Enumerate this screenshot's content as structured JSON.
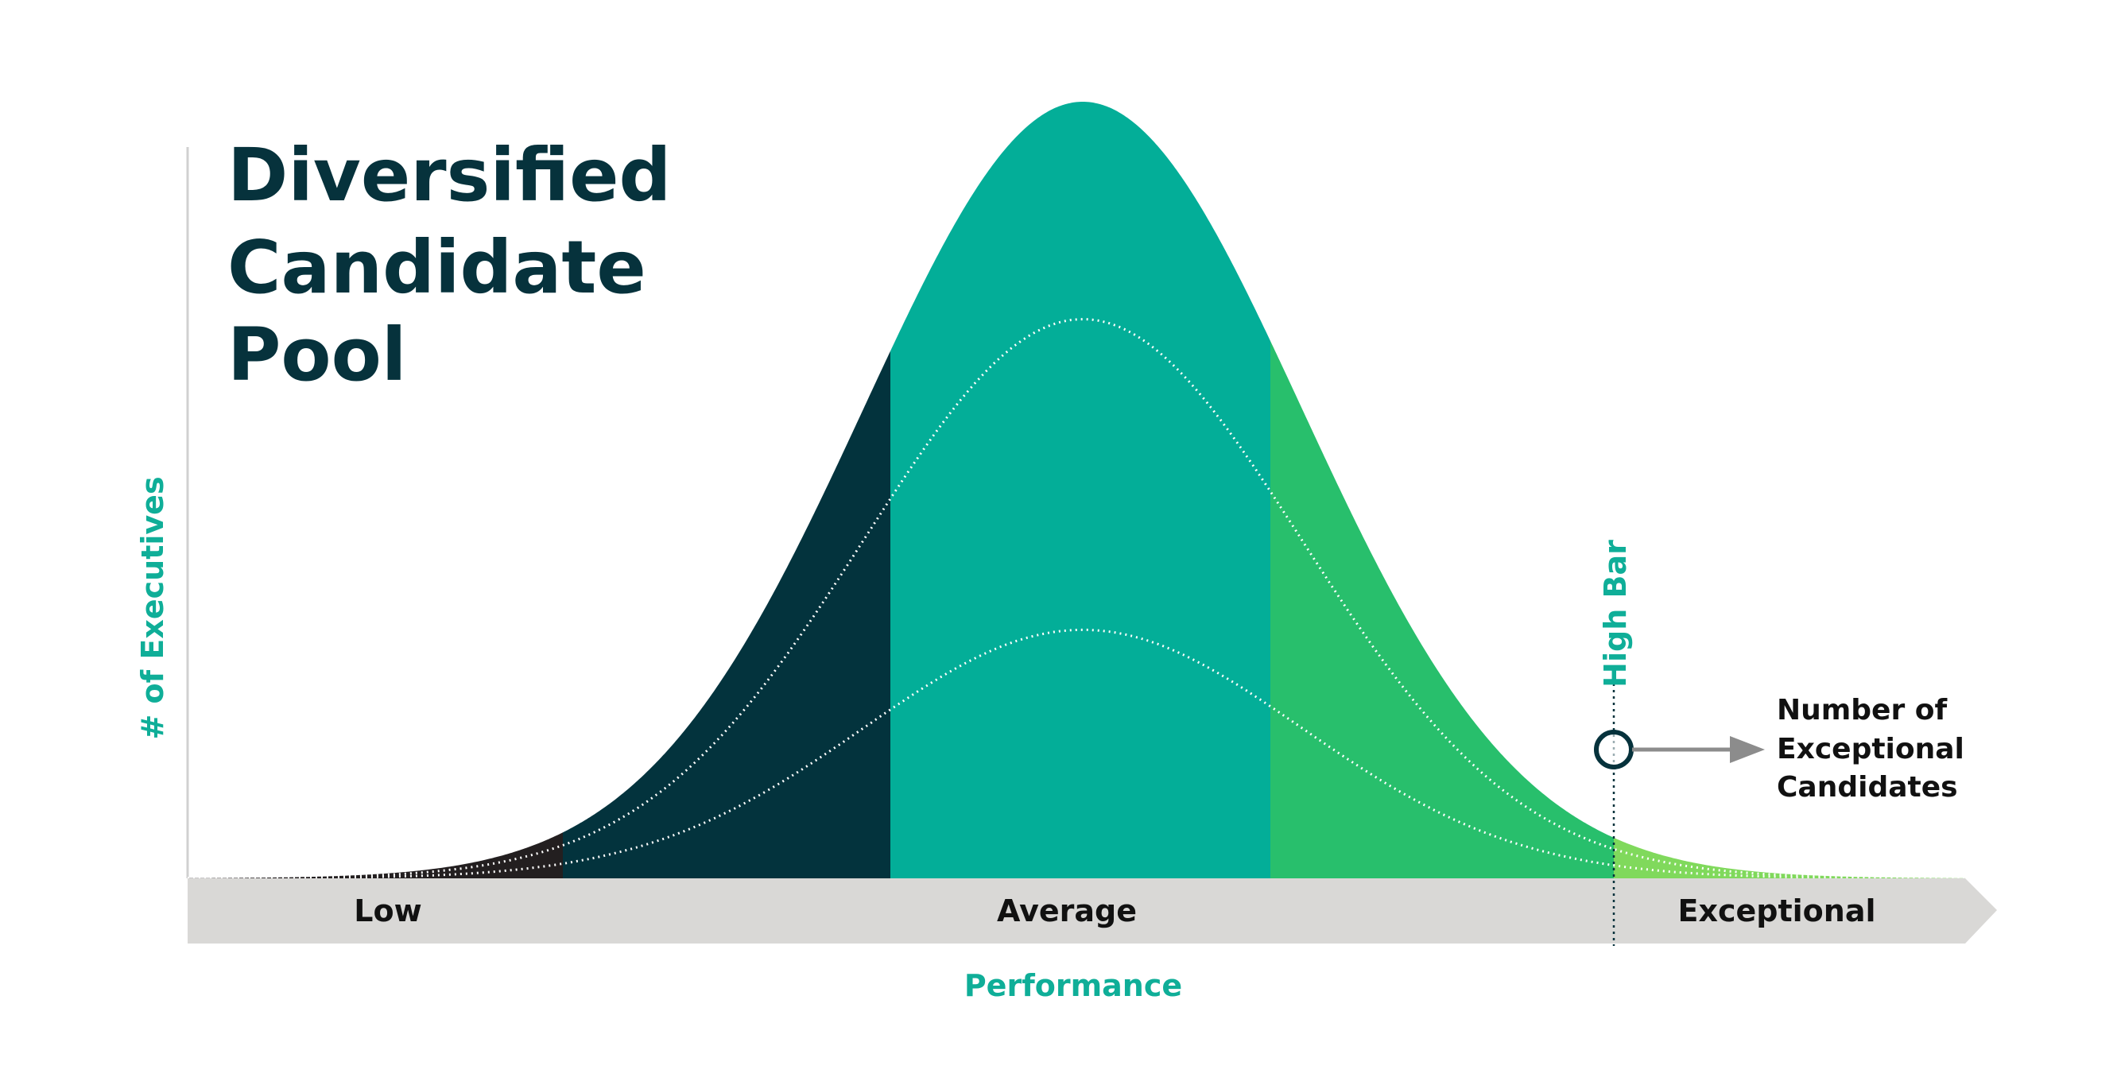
{
  "chart_data": {
    "type": "area",
    "title_lines": [
      "Diversified",
      "Candidate",
      "Pool"
    ],
    "xlabel": "Performance",
    "ylabel": "# of Executives",
    "x_categories": [
      "Low",
      "Average",
      "Exceptional"
    ],
    "threshold_label": "High Bar",
    "callout_lines": [
      "Number of",
      "Exceptional",
      "Candidates"
    ],
    "grid": false,
    "series": [
      {
        "values_relative_height": 1.0
      },
      {
        "values_relative_height": 0.72
      },
      {
        "values_relative_height": 0.32
      }
    ],
    "segments": [
      {
        "color": "#231f20"
      },
      {
        "color": "#03333d"
      },
      {
        "color": "#03ae98"
      },
      {
        "color": "#28bf6c"
      },
      {
        "color": "#80d95c"
      }
    ],
    "colors": {
      "title": "#06323c",
      "accent": "#0fae98",
      "axis_band": "#d9d8d6",
      "arrow": "#8c8c8c"
    }
  }
}
